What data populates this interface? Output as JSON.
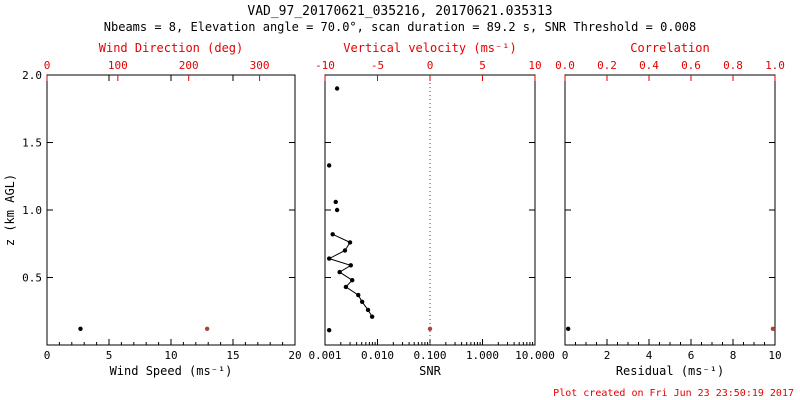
{
  "colors": {
    "red": "#e60000",
    "marker_red": "#a8453a",
    "black": "#000000"
  },
  "chart_data": {
    "type": "scatter",
    "title": "VAD_97_20170621_035216, 20170621.035313",
    "subtitle": "Nbeams = 8, Elevation angle = 70.0°, scan duration = 89.2 s, SNR Threshold = 0.008",
    "footer": "Plot created on Fri Jun 23 23:50:19 2017",
    "y": {
      "label": "z (km AGL)",
      "min": 0,
      "max": 2.0,
      "tick_values": [
        0,
        0.5,
        1.0,
        1.5,
        2.0
      ],
      "tick_labels": [
        "",
        "0.5",
        "1.0",
        "1.5",
        "2.0"
      ]
    },
    "panels": [
      {
        "id": "wind",
        "bottom": {
          "label": "Wind Speed (ms⁻¹)",
          "min": 0,
          "max": 20,
          "log": false,
          "ticks": [
            0,
            5,
            10,
            15,
            20
          ],
          "tick_labels": [
            "0",
            "5",
            "10",
            "15",
            "20"
          ],
          "minor_step": 1
        },
        "top": {
          "label": "Wind Direction (deg)",
          "min": 0,
          "max": 350,
          "ticks": [
            0,
            100,
            200,
            300
          ],
          "tick_labels": [
            "0",
            "100",
            "200",
            "300"
          ]
        },
        "series": [
          {
            "name": "wind-speed",
            "axis": "bottom",
            "color": "black",
            "line": false,
            "points": [
              [
                2.7,
                0.12
              ]
            ]
          },
          {
            "name": "wind-direction",
            "axis": "top",
            "color": "red",
            "line": false,
            "points": [
              [
                226,
                0.12
              ]
            ]
          }
        ]
      },
      {
        "id": "snr",
        "bottom": {
          "label": "SNR",
          "min": 0.001,
          "max": 10,
          "log": true,
          "ticks": [
            0.001,
            0.01,
            0.1,
            1,
            10
          ],
          "tick_labels": [
            "0.001",
            "0.010",
            "0.100",
            "1.000",
            "10.000"
          ]
        },
        "top": {
          "label": "Vertical velocity (ms⁻¹)",
          "min": -10,
          "max": 10,
          "ticks": [
            -10,
            -5,
            0,
            5,
            10
          ],
          "tick_labels": [
            "-10",
            "-5",
            "0",
            "5",
            "10"
          ]
        },
        "refline": {
          "axis": "top",
          "value": 0
        },
        "series": [
          {
            "name": "snr-isolated",
            "axis": "bottom",
            "color": "black",
            "line": false,
            "points": [
              [
                0.0017,
                1.9
              ],
              [
                0.0012,
                1.33
              ],
              [
                0.0016,
                1.06
              ],
              [
                0.0017,
                1.0
              ],
              [
                0.0012,
                0.11
              ]
            ]
          },
          {
            "name": "snr-profile",
            "axis": "bottom",
            "color": "black",
            "line": true,
            "points": [
              [
                0.0014,
                0.82
              ],
              [
                0.003,
                0.76
              ],
              [
                0.0024,
                0.7
              ],
              [
                0.0012,
                0.64
              ],
              [
                0.0031,
                0.59
              ],
              [
                0.0019,
                0.54
              ],
              [
                0.0033,
                0.48
              ],
              [
                0.0025,
                0.43
              ],
              [
                0.0043,
                0.37
              ],
              [
                0.0051,
                0.32
              ],
              [
                0.0066,
                0.26
              ],
              [
                0.0079,
                0.21
              ]
            ]
          },
          {
            "name": "vertical-velocity",
            "axis": "top",
            "color": "red",
            "line": false,
            "points": [
              [
                0,
                0.12
              ]
            ]
          }
        ]
      },
      {
        "id": "residual",
        "bottom": {
          "label": "Residual (ms⁻¹)",
          "min": 0,
          "max": 10,
          "log": false,
          "ticks": [
            0,
            2,
            4,
            6,
            8,
            10
          ],
          "tick_labels": [
            "0",
            "2",
            "4",
            "6",
            "8",
            "10"
          ],
          "minor_step": 0.5
        },
        "top": {
          "label": "Correlation",
          "min": 0,
          "max": 1,
          "ticks": [
            0,
            0.2,
            0.4,
            0.6,
            0.8,
            1.0
          ],
          "tick_labels": [
            "0.0",
            "0.2",
            "0.4",
            "0.6",
            "0.8",
            "1.0"
          ]
        },
        "series": [
          {
            "name": "residual",
            "axis": "bottom",
            "color": "black",
            "line": false,
            "points": [
              [
                0.15,
                0.12
              ]
            ]
          },
          {
            "name": "correlation",
            "axis": "top",
            "color": "red",
            "line": false,
            "points": [
              [
                0.99,
                0.12
              ]
            ]
          }
        ]
      }
    ]
  }
}
